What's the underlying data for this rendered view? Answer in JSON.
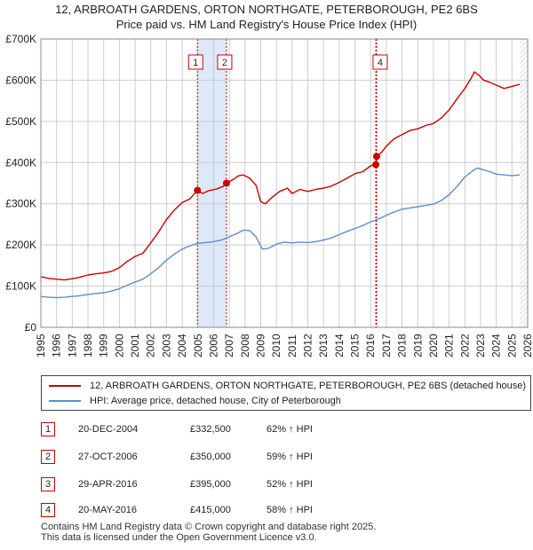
{
  "header": {
    "title": "12, ARBROATH GARDENS, ORTON NORTHGATE, PETERBOROUGH, PE2 6BS",
    "subtitle": "Price paid vs. HM Land Registry's House Price Index (HPI)"
  },
  "chart_data": {
    "type": "line",
    "xlim": [
      1995,
      2026
    ],
    "ylim": [
      0,
      700000
    ],
    "x_ticks": [
      "1995",
      "1996",
      "1997",
      "1998",
      "1999",
      "2000",
      "2001",
      "2002",
      "2003",
      "2004",
      "2005",
      "2006",
      "2007",
      "2008",
      "2009",
      "2010",
      "2011",
      "2012",
      "2013",
      "2014",
      "2015",
      "2016",
      "2017",
      "2018",
      "2019",
      "2020",
      "2021",
      "2022",
      "2023",
      "2024",
      "2025",
      "2026"
    ],
    "y_ticks": [
      {
        "value": 0,
        "label": "£0"
      },
      {
        "value": 100000,
        "label": "£100K"
      },
      {
        "value": 200000,
        "label": "£200K"
      },
      {
        "value": 300000,
        "label": "£300K"
      },
      {
        "value": 400000,
        "label": "£400K"
      },
      {
        "value": 500000,
        "label": "£500K"
      },
      {
        "value": 600000,
        "label": "£600K"
      },
      {
        "value": 700000,
        "label": "£700K"
      }
    ],
    "grid": true,
    "colors": {
      "red": "#cc0000",
      "blue": "#5b8fc9",
      "shade": "#dde8f8",
      "grid": "#cccccc"
    },
    "series": [
      {
        "name": "12, ARBROATH GARDENS, ORTON NORTHGATE, PETERBOROUGH, PE2 6BS (detached house)",
        "color": "#cc0000",
        "points": [
          [
            1995.0,
            123000
          ],
          [
            1995.5,
            119000
          ],
          [
            1996.0,
            117000
          ],
          [
            1996.5,
            115000
          ],
          [
            1997.0,
            118000
          ],
          [
            1997.5,
            122000
          ],
          [
            1998.0,
            127000
          ],
          [
            1998.5,
            130000
          ],
          [
            1999.0,
            132000
          ],
          [
            1999.5,
            136000
          ],
          [
            2000.0,
            145000
          ],
          [
            2000.5,
            160000
          ],
          [
            2001.0,
            172000
          ],
          [
            2001.5,
            180000
          ],
          [
            2002.0,
            205000
          ],
          [
            2002.5,
            232000
          ],
          [
            2003.0,
            262000
          ],
          [
            2003.5,
            285000
          ],
          [
            2004.0,
            303000
          ],
          [
            2004.5,
            312000
          ],
          [
            2004.97,
            332500
          ],
          [
            2005.3,
            325000
          ],
          [
            2005.7,
            332000
          ],
          [
            2006.2,
            336000
          ],
          [
            2006.6,
            342000
          ],
          [
            2006.82,
            350000
          ],
          [
            2007.2,
            358000
          ],
          [
            2007.6,
            368000
          ],
          [
            2007.9,
            370000
          ],
          [
            2008.3,
            362000
          ],
          [
            2008.7,
            345000
          ],
          [
            2009.0,
            305000
          ],
          [
            2009.3,
            300000
          ],
          [
            2009.7,
            315000
          ],
          [
            2010.2,
            330000
          ],
          [
            2010.7,
            338000
          ],
          [
            2011.0,
            325000
          ],
          [
            2011.5,
            335000
          ],
          [
            2012.0,
            330000
          ],
          [
            2012.5,
            335000
          ],
          [
            2013.0,
            338000
          ],
          [
            2013.5,
            343000
          ],
          [
            2014.0,
            352000
          ],
          [
            2014.5,
            362000
          ],
          [
            2015.0,
            373000
          ],
          [
            2015.5,
            378000
          ],
          [
            2016.0,
            392000
          ],
          [
            2016.33,
            395000
          ],
          [
            2016.38,
            415000
          ],
          [
            2016.7,
            425000
          ],
          [
            2017.0,
            440000
          ],
          [
            2017.5,
            458000
          ],
          [
            2018.0,
            468000
          ],
          [
            2018.5,
            478000
          ],
          [
            2019.0,
            482000
          ],
          [
            2019.5,
            490000
          ],
          [
            2020.0,
            495000
          ],
          [
            2020.5,
            508000
          ],
          [
            2021.0,
            528000
          ],
          [
            2021.5,
            555000
          ],
          [
            2022.0,
            580000
          ],
          [
            2022.4,
            605000
          ],
          [
            2022.6,
            620000
          ],
          [
            2022.9,
            612000
          ],
          [
            2023.2,
            600000
          ],
          [
            2023.6,
            595000
          ],
          [
            2024.0,
            588000
          ],
          [
            2024.5,
            580000
          ],
          [
            2025.0,
            585000
          ],
          [
            2025.5,
            590000
          ]
        ]
      },
      {
        "name": "HPI: Average price, detached house, City of Peterborough",
        "color": "#5b8fc9",
        "points": [
          [
            1995.0,
            75000
          ],
          [
            1995.5,
            73000
          ],
          [
            1996.0,
            72000
          ],
          [
            1996.5,
            73000
          ],
          [
            1997.0,
            75000
          ],
          [
            1997.5,
            77000
          ],
          [
            1998.0,
            80000
          ],
          [
            1998.5,
            82000
          ],
          [
            1999.0,
            84000
          ],
          [
            1999.5,
            88000
          ],
          [
            2000.0,
            94000
          ],
          [
            2000.5,
            102000
          ],
          [
            2001.0,
            110000
          ],
          [
            2001.5,
            117000
          ],
          [
            2002.0,
            130000
          ],
          [
            2002.5,
            145000
          ],
          [
            2003.0,
            163000
          ],
          [
            2003.5,
            178000
          ],
          [
            2004.0,
            190000
          ],
          [
            2004.5,
            198000
          ],
          [
            2005.0,
            204000
          ],
          [
            2005.5,
            206000
          ],
          [
            2006.0,
            208000
          ],
          [
            2006.5,
            212000
          ],
          [
            2007.0,
            220000
          ],
          [
            2007.5,
            228000
          ],
          [
            2007.9,
            236000
          ],
          [
            2008.3,
            235000
          ],
          [
            2008.7,
            220000
          ],
          [
            2009.1,
            190000
          ],
          [
            2009.5,
            192000
          ],
          [
            2010.0,
            202000
          ],
          [
            2010.5,
            207000
          ],
          [
            2011.0,
            205000
          ],
          [
            2011.5,
            207000
          ],
          [
            2012.0,
            206000
          ],
          [
            2012.5,
            208000
          ],
          [
            2013.0,
            212000
          ],
          [
            2013.5,
            217000
          ],
          [
            2014.0,
            225000
          ],
          [
            2014.5,
            233000
          ],
          [
            2015.0,
            240000
          ],
          [
            2015.5,
            247000
          ],
          [
            2016.0,
            256000
          ],
          [
            2016.5,
            263000
          ],
          [
            2017.0,
            272000
          ],
          [
            2017.5,
            280000
          ],
          [
            2018.0,
            287000
          ],
          [
            2018.5,
            290000
          ],
          [
            2019.0,
            293000
          ],
          [
            2019.5,
            296000
          ],
          [
            2020.0,
            299000
          ],
          [
            2020.5,
            308000
          ],
          [
            2021.0,
            322000
          ],
          [
            2021.5,
            342000
          ],
          [
            2022.0,
            365000
          ],
          [
            2022.5,
            380000
          ],
          [
            2022.8,
            387000
          ],
          [
            2023.2,
            382000
          ],
          [
            2023.6,
            378000
          ],
          [
            2024.0,
            372000
          ],
          [
            2024.5,
            370000
          ],
          [
            2025.0,
            368000
          ],
          [
            2025.5,
            370000
          ]
        ]
      }
    ],
    "shaded_region": [
      2004.97,
      2006.82
    ],
    "hatch_from": 2025.5,
    "markers": [
      {
        "label": "1",
        "x": 2004.97,
        "price": 332500
      },
      {
        "label": "2",
        "x": 2006.82,
        "price": 350000
      },
      {
        "label": "3",
        "x": 2016.33,
        "price": 395000
      },
      {
        "label": "4",
        "x": 2016.38,
        "price": 415000
      }
    ],
    "marker_boxes": [
      "1",
      "2",
      "4"
    ]
  },
  "transactions": [
    {
      "num": "1",
      "date": "20-DEC-2004",
      "price": "£332,500",
      "pct": "62% ↑ HPI"
    },
    {
      "num": "2",
      "date": "27-OCT-2006",
      "price": "£350,000",
      "pct": "59% ↑ HPI"
    },
    {
      "num": "3",
      "date": "29-APR-2016",
      "price": "£395,000",
      "pct": "52% ↑ HPI"
    },
    {
      "num": "4",
      "date": "20-MAY-2016",
      "price": "£415,000",
      "pct": "58% ↑ HPI"
    }
  ],
  "footer": {
    "line1": "Contains HM Land Registry data © Crown copyright and database right 2025.",
    "line2": "This data is licensed under the Open Government Licence v3.0."
  }
}
